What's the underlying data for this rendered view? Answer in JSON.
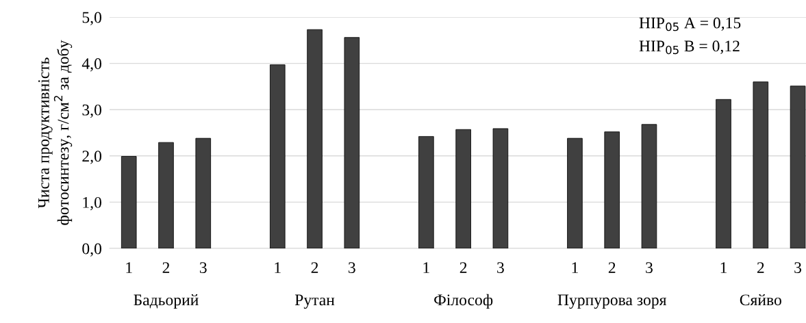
{
  "chart_data": {
    "type": "bar",
    "ylabel": "Чиста продуктивність\nфотосинтезу, г/см$^{2}$ за добу",
    "categories": [
      "1",
      "2",
      "3",
      null,
      "1",
      "2",
      "3",
      null,
      "1",
      "2",
      "3",
      null,
      "1",
      "2",
      "3",
      null,
      "1",
      "2",
      "3"
    ],
    "values": [
      1.99,
      2.29,
      2.38,
      null,
      3.97,
      4.73,
      4.56,
      null,
      2.42,
      2.57,
      2.59,
      null,
      2.38,
      2.52,
      2.68,
      null,
      3.22,
      3.6,
      3.51
    ],
    "color": "#404040",
    "ylim": [
      0,
      5
    ],
    "yticks": [
      {
        "value": 0,
        "label": "0,0"
      },
      {
        "value": 1,
        "label": "1,0"
      },
      {
        "value": 2,
        "label": "2,0"
      },
      {
        "value": 3,
        "label": "3,0"
      },
      {
        "value": 4,
        "label": "4,0"
      },
      {
        "value": 5,
        "label": "5,0"
      }
    ],
    "grid": "y",
    "annotations": [
      "НІР$_{05}$ А = 0,15",
      "НІР$_{05}$ В = 0,12",
      "Бадьорий",
      "Рутан",
      "Філософ",
      "Пурпурова зоря",
      "Сяйво"
    ]
  }
}
